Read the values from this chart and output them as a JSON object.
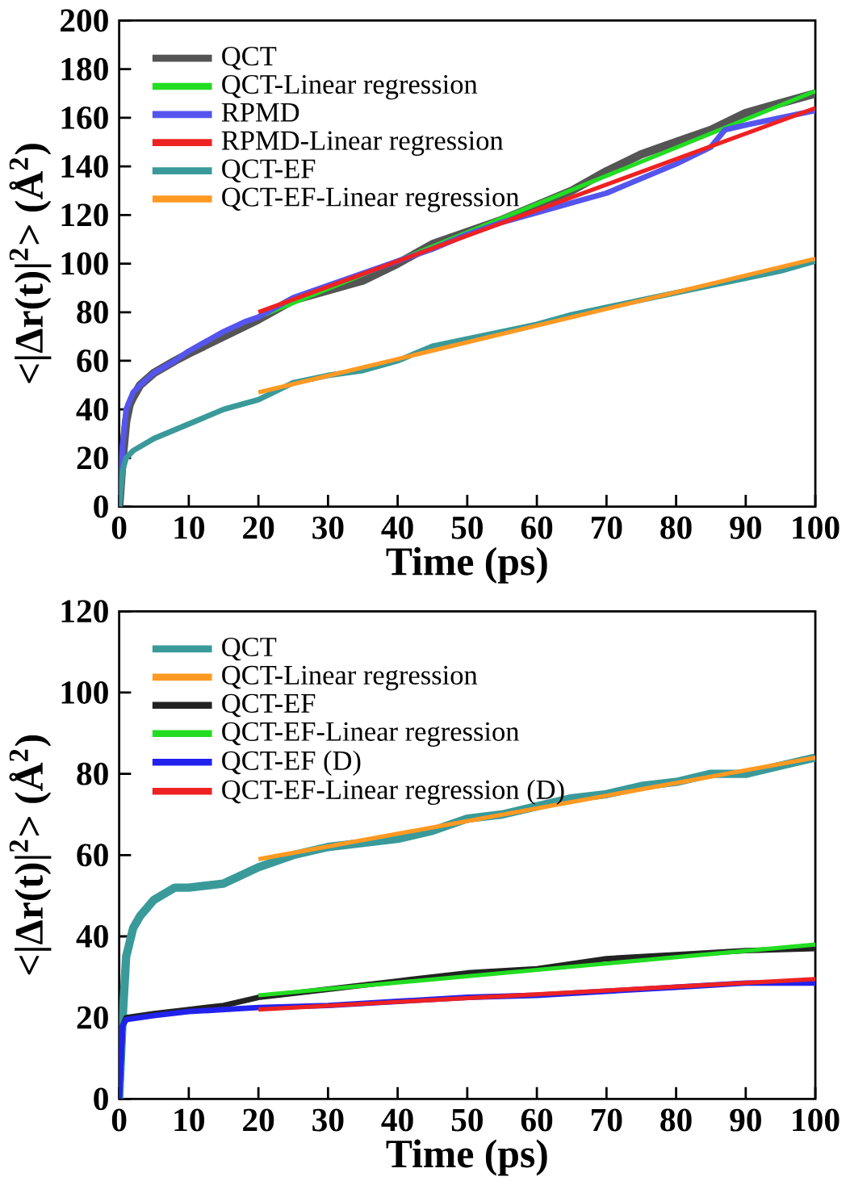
{
  "chart_data": [
    {
      "type": "line",
      "xlabel": "Time (ps)",
      "ylabel": "<|Δr(t)|$^{2}$> (Å$^{2}$)",
      "xlim": [
        0,
        100
      ],
      "ylim": [
        0,
        200
      ],
      "xticks": [
        0,
        10,
        20,
        30,
        40,
        50,
        60,
        70,
        80,
        90,
        100
      ],
      "yticks": [
        0,
        20,
        40,
        60,
        80,
        100,
        120,
        140,
        160,
        180,
        200
      ],
      "legend": "top left",
      "series": [
        {
          "name": "QCT",
          "color": "#555555",
          "x": [
            0,
            0.5,
            1,
            1.5,
            2,
            3,
            5,
            8,
            10,
            15,
            20,
            25,
            30,
            35,
            40,
            45,
            50,
            55,
            60,
            65,
            70,
            75,
            80,
            85,
            90,
            95,
            100
          ],
          "values": [
            0,
            20,
            35,
            42,
            45,
            50,
            55,
            60,
            63,
            70,
            77,
            85,
            89,
            93,
            100,
            108,
            113,
            118,
            124,
            130,
            138,
            145,
            150,
            155,
            162,
            166,
            170
          ]
        },
        {
          "name": "QCT-Linear regression",
          "color": "#22dd22",
          "x": [
            20,
            100
          ],
          "values": [
            78,
            171
          ]
        },
        {
          "name": "RPMD",
          "color": "#5555ee",
          "x": [
            0,
            0.5,
            1,
            2,
            3,
            5,
            8,
            10,
            15,
            18,
            20,
            25,
            30,
            35,
            40,
            45,
            50,
            55,
            60,
            65,
            70,
            75,
            80,
            85,
            87,
            90,
            95,
            100
          ],
          "values": [
            0,
            25,
            40,
            47,
            50,
            55,
            60,
            64,
            72,
            76,
            78,
            86,
            91,
            96,
            101,
            106,
            112,
            117,
            121,
            125,
            129,
            135,
            141,
            148,
            155,
            157,
            160,
            163
          ]
        },
        {
          "name": "RPMD-Linear regression",
          "color": "#ee2222",
          "x": [
            20,
            100
          ],
          "values": [
            80,
            164
          ]
        },
        {
          "name": "QCT-EF",
          "color": "#3a9a9a",
          "x": [
            0,
            0.5,
            1,
            2,
            5,
            10,
            15,
            20,
            25,
            30,
            35,
            40,
            45,
            50,
            55,
            60,
            65,
            70,
            75,
            80,
            85,
            90,
            95,
            100
          ],
          "values": [
            0,
            15,
            20,
            23,
            28,
            34,
            40,
            44,
            51,
            54,
            56,
            60,
            66,
            69,
            72,
            75,
            79,
            82,
            85,
            88,
            91,
            94,
            97,
            101
          ]
        },
        {
          "name": "QCT-EF-Linear regression",
          "color": "#ff9922",
          "x": [
            20,
            100
          ],
          "values": [
            47,
            102
          ]
        }
      ]
    },
    {
      "type": "line",
      "xlabel": "Time (ps)",
      "ylabel": "<|Δr(t)|$^{2}$> (Å$^{2}$)",
      "xlim": [
        0,
        100
      ],
      "ylim": [
        0,
        120
      ],
      "xticks": [
        0,
        10,
        20,
        30,
        40,
        50,
        60,
        70,
        80,
        90,
        100
      ],
      "yticks": [
        0,
        20,
        40,
        60,
        80,
        100,
        120
      ],
      "legend": "top left",
      "series": [
        {
          "name": "QCT",
          "color": "#3a9a9a",
          "x": [
            0,
            0.5,
            1,
            2,
            3,
            5,
            8,
            10,
            15,
            20,
            25,
            30,
            35,
            40,
            45,
            50,
            55,
            60,
            65,
            70,
            75,
            80,
            85,
            90,
            95,
            100
          ],
          "values": [
            0,
            20,
            35,
            42,
            45,
            49,
            52,
            52,
            53,
            57,
            60,
            62,
            63,
            64,
            66,
            69,
            70,
            72,
            74,
            75,
            77,
            78,
            80,
            80,
            82,
            84
          ]
        },
        {
          "name": "QCT-Linear regression",
          "color": "#ff9922",
          "x": [
            20,
            100
          ],
          "values": [
            59,
            84
          ]
        },
        {
          "name": "QCT-EF",
          "color": "#222222",
          "x": [
            0,
            0.5,
            1,
            5,
            10,
            15,
            20,
            30,
            40,
            50,
            60,
            70,
            80,
            90,
            100
          ],
          "values": [
            0,
            18,
            20,
            21,
            22,
            23,
            25,
            27,
            29,
            31,
            32,
            34.5,
            35.5,
            36.5,
            37
          ]
        },
        {
          "name": "QCT-EF-Linear regression",
          "color": "#22dd22",
          "x": [
            20,
            100
          ],
          "values": [
            25.5,
            38
          ]
        },
        {
          "name": "QCT-EF (D)",
          "color": "#2222ee",
          "x": [
            0,
            0.5,
            1,
            5,
            10,
            20,
            30,
            40,
            50,
            60,
            70,
            80,
            90,
            100
          ],
          "values": [
            0,
            18,
            19.5,
            20.5,
            21.5,
            22.5,
            23,
            24,
            25,
            25.5,
            26.5,
            27.5,
            28.5,
            28.5
          ]
        },
        {
          "name": "QCT-EF-Linear regression (D)",
          "color": "#ee2222",
          "x": [
            20,
            100
          ],
          "values": [
            22,
            29.5
          ]
        }
      ]
    }
  ]
}
